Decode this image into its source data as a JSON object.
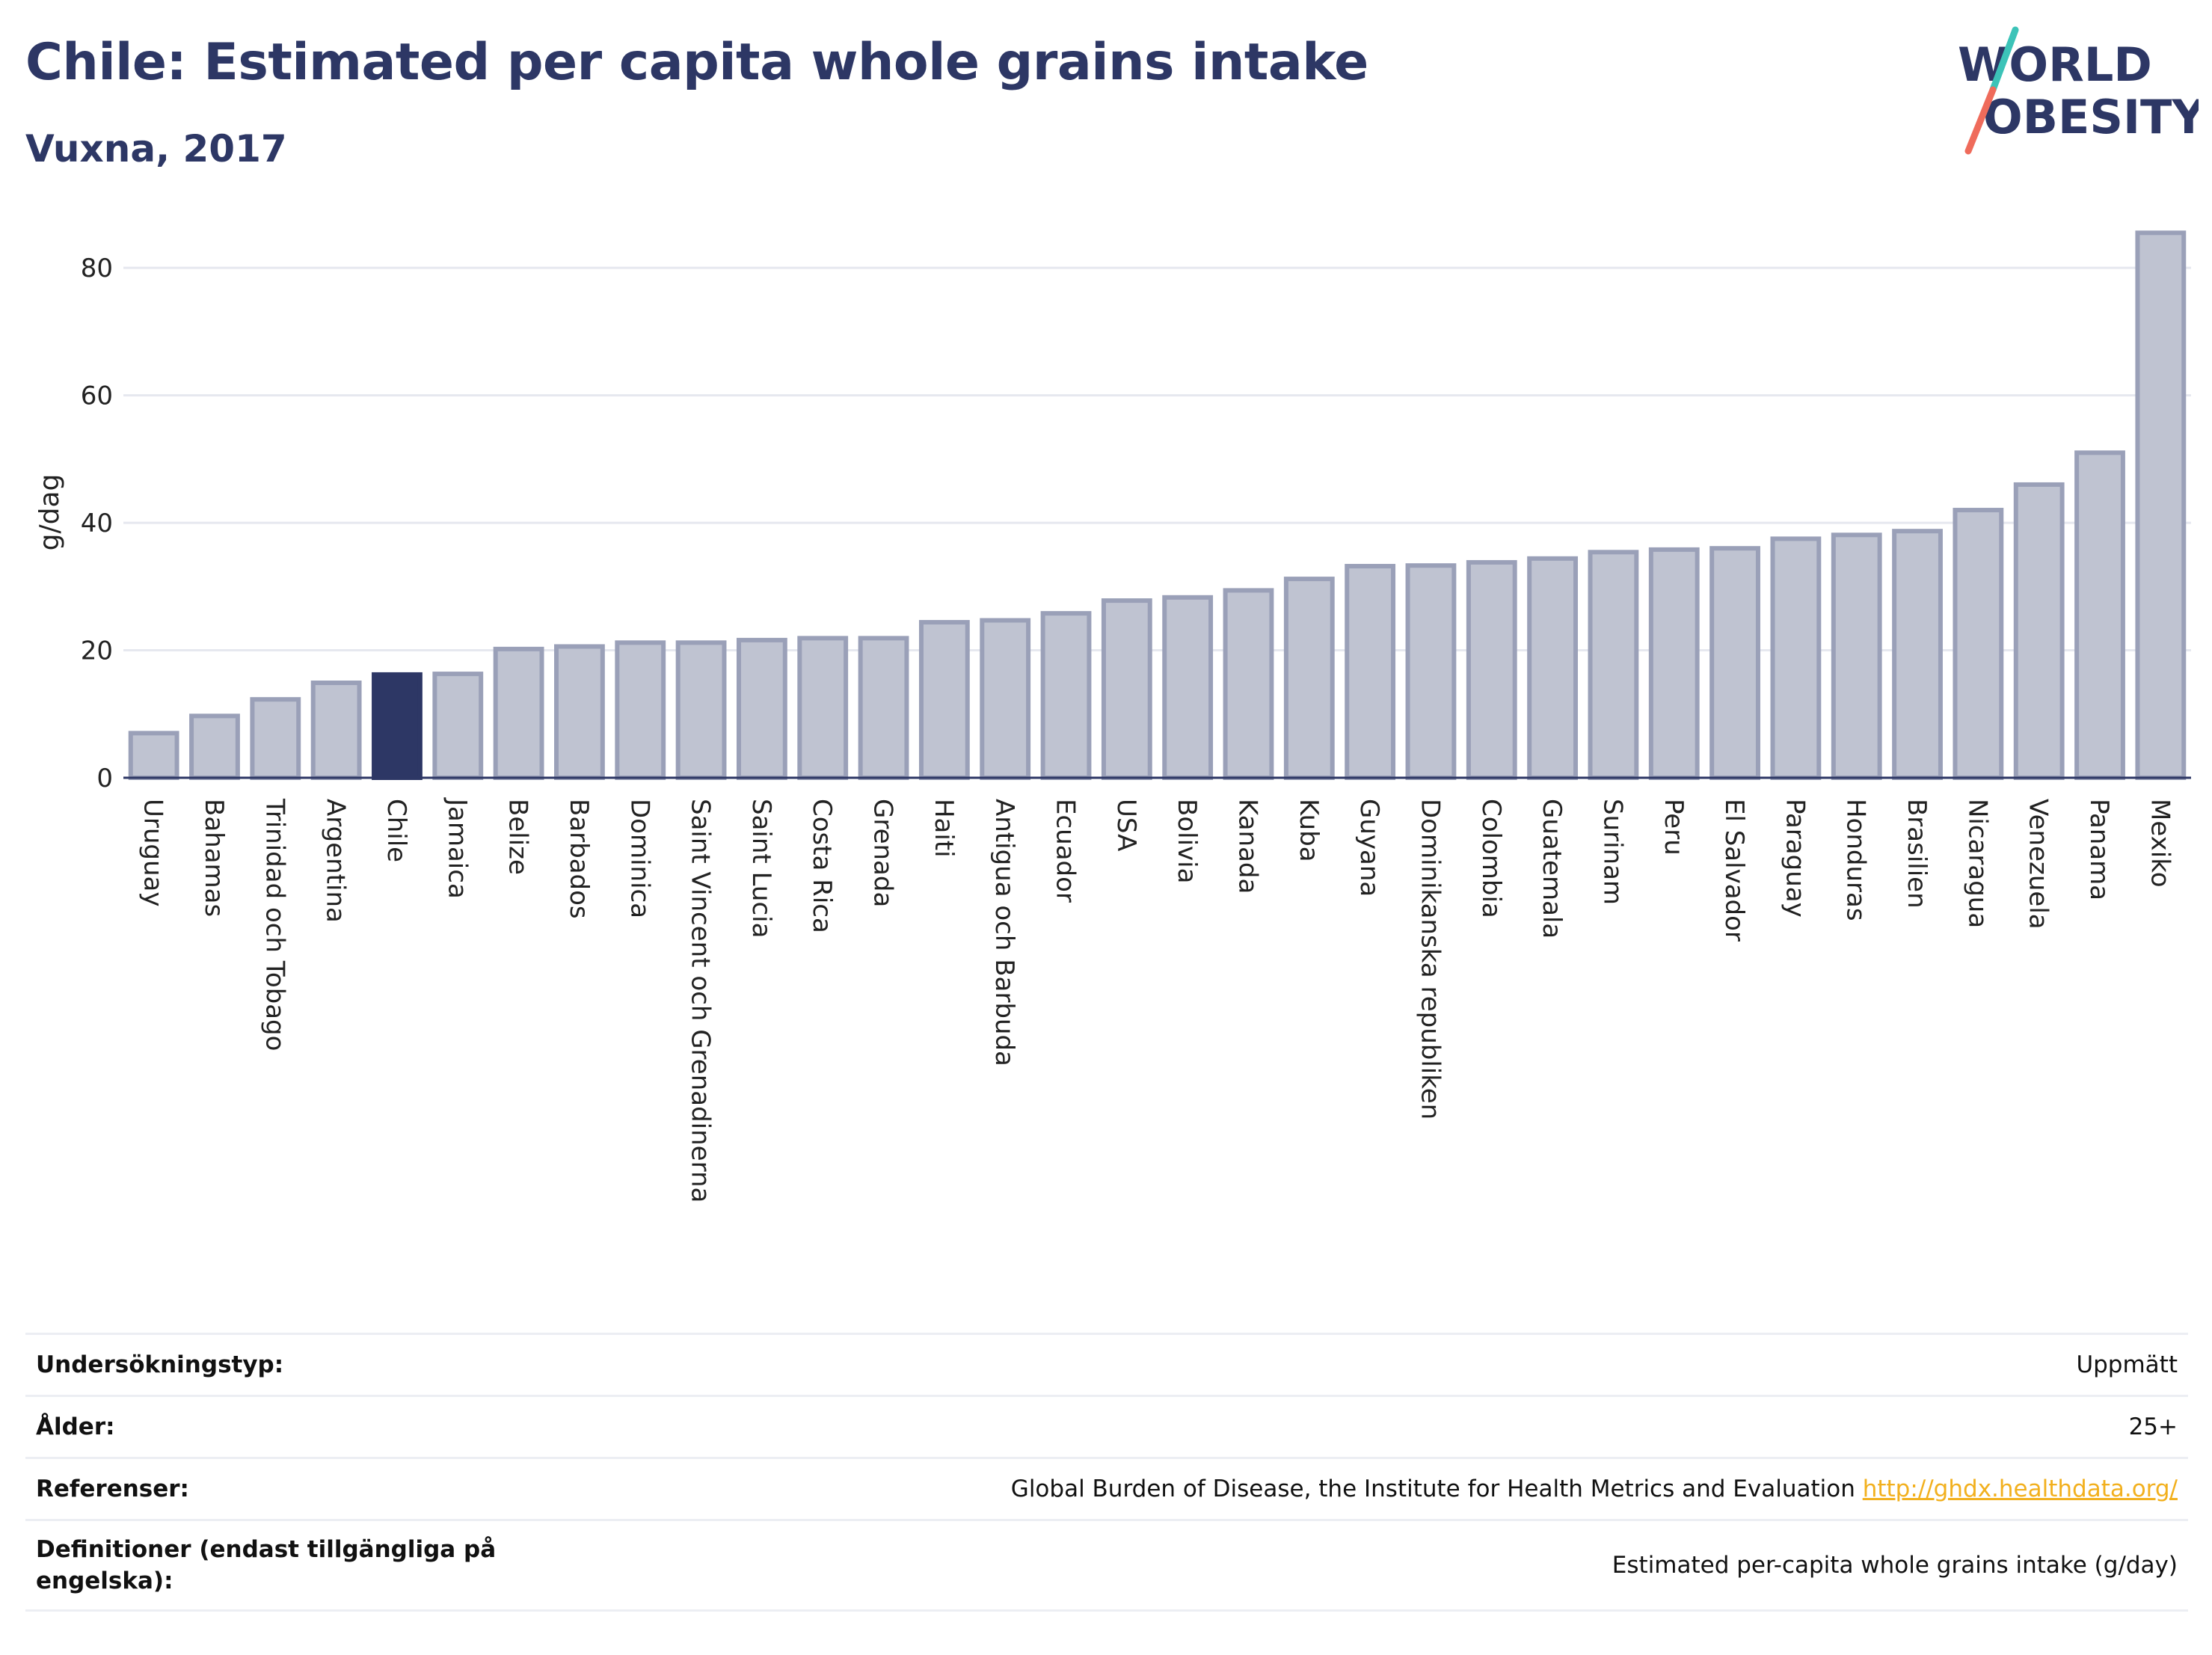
{
  "header": {
    "title": "Chile: Estimated per capita whole grains intake",
    "subtitle": "Vuxna, 2017"
  },
  "logo": {
    "line1": "WORLD",
    "line2": "OBESITY"
  },
  "colors": {
    "bar": "#bfc3d1",
    "bar_edge": "#9aa0b8",
    "highlight": "#2d3765",
    "title": "#2d3765",
    "grid": "#e6e8ef",
    "link": "#f2b01e",
    "logo_teal": "#3cc3b8",
    "logo_red": "#ef6b5b"
  },
  "chart_data": {
    "type": "bar",
    "ylabel": "g/dag",
    "ylim": [
      0,
      88
    ],
    "yticks": [
      0,
      20,
      40,
      60,
      80
    ],
    "grid": true,
    "highlight": "Chile",
    "categories": [
      "Uruguay",
      "Bahamas",
      "Trinidad och Tobago",
      "Argentina",
      "Chile",
      "Jamaica",
      "Belize",
      "Barbados",
      "Dominica",
      "Saint Vincent och Grenadinerna",
      "Saint Lucia",
      "Costa Rica",
      "Grenada",
      "Haiti",
      "Antigua och Barbuda",
      "Ecuador",
      "USA",
      "Bolivia",
      "Kanada",
      "Kuba",
      "Guyana",
      "Dominikanska republiken",
      "Colombia",
      "Guatemala",
      "Surinam",
      "Peru",
      "El Salvador",
      "Paraguay",
      "Honduras",
      "Brasilien",
      "Nicaragua",
      "Venezuela",
      "Panama",
      "Mexiko"
    ],
    "values": [
      7.0,
      9.7,
      12.3,
      14.9,
      16.2,
      16.3,
      20.2,
      20.6,
      21.2,
      21.2,
      21.6,
      21.9,
      21.9,
      24.4,
      24.7,
      25.8,
      27.8,
      28.3,
      29.4,
      31.2,
      33.2,
      33.3,
      33.8,
      34.4,
      35.4,
      35.8,
      36.0,
      37.5,
      38.1,
      38.7,
      42.0,
      46.0,
      51.0,
      85.5
    ]
  },
  "meta": {
    "survey_label": "Undersökningstyp:",
    "survey_value": "Uppmätt",
    "age_label": "Ålder:",
    "age_value": "25+",
    "refs_label": "Referenser:",
    "refs_value": "Global Burden of Disease, the Institute for Health Metrics and Evaluation",
    "refs_link": "http://ghdx.healthdata.org/",
    "defs_label": "Definitioner (endast tillgängliga på engelska):",
    "defs_value": "Estimated per-capita whole grains intake (g/day)"
  }
}
